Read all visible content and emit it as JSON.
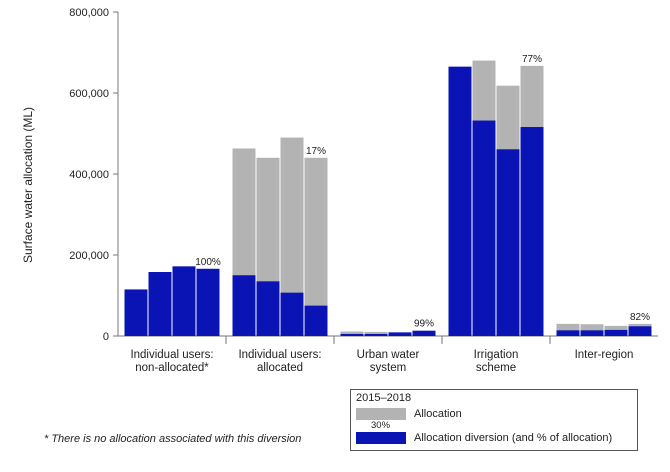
{
  "chart_data": {
    "type": "bar",
    "subtype": "overlapping grouped bars",
    "ylabel": "Surface water allocation (ML)",
    "ylim": [
      0,
      800000
    ],
    "yticks": [
      0,
      200000,
      400000,
      600000,
      800000
    ],
    "ytick_labels": [
      "0",
      "200,000",
      "400,000",
      "600,000",
      "800,000"
    ],
    "years": [
      "2015",
      "2016",
      "2017",
      "2018"
    ],
    "categories": [
      "Individual users: non-allocated*",
      "Individual users: allocated",
      "Urban water system",
      "Irrigation scheme",
      "Inter-region"
    ],
    "category_label_lines": [
      [
        "Individual users:",
        "non-allocated*"
      ],
      [
        "Individual users:",
        "allocated"
      ],
      [
        "Urban water",
        "system"
      ],
      [
        "Irrigation",
        "scheme"
      ],
      [
        "Inter-region"
      ]
    ],
    "series": [
      {
        "name": "Allocation",
        "color": "#b3b3b3",
        "values": [
          [
            0,
            0,
            0,
            0
          ],
          [
            463000,
            440000,
            490000,
            440000
          ],
          [
            11000,
            10000,
            7000,
            13000
          ],
          [
            665000,
            680000,
            618000,
            667000
          ],
          [
            30000,
            29000,
            25000,
            30000
          ]
        ]
      },
      {
        "name": "Allocation diversion (and % of allocation)",
        "color": "#0a14b4",
        "values": [
          [
            115000,
            158000,
            172000,
            166000
          ],
          [
            150000,
            135000,
            107000,
            75000
          ],
          [
            5000,
            5000,
            9000,
            13000
          ],
          [
            665000,
            532000,
            461000,
            516000
          ],
          [
            14000,
            14000,
            15000,
            24000
          ]
        ]
      }
    ],
    "pct_labels": [
      "100%",
      "17%",
      "99%",
      "77%",
      "82%"
    ]
  },
  "legend": {
    "title": "2015–2018",
    "items": [
      {
        "label": "Allocation",
        "color": "#b3b3b3"
      },
      {
        "label": "Allocation diversion (and % of allocation)",
        "color": "#0a14b4"
      }
    ],
    "example_pct": "30%"
  },
  "footnote": "* There is no allocation associated with this diversion"
}
